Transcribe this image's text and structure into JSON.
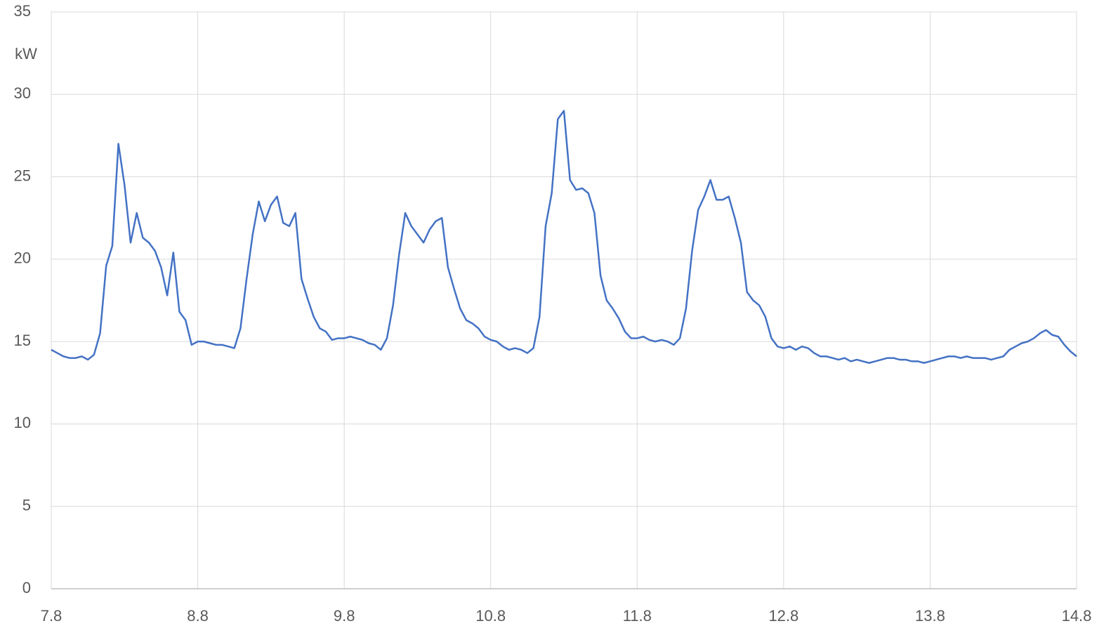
{
  "chart_data": {
    "type": "line",
    "y_label": "kW",
    "categories": [
      "7.8",
      null,
      null,
      null,
      null,
      null,
      null,
      null,
      null,
      null,
      null,
      null,
      null,
      null,
      null,
      null,
      null,
      null,
      null,
      null,
      null,
      null,
      null,
      null,
      "8.8",
      null,
      null,
      null,
      null,
      null,
      null,
      null,
      null,
      null,
      null,
      null,
      null,
      null,
      null,
      null,
      null,
      null,
      null,
      null,
      null,
      null,
      null,
      null,
      "9.8",
      null,
      null,
      null,
      null,
      null,
      null,
      null,
      null,
      null,
      null,
      null,
      null,
      null,
      null,
      null,
      null,
      null,
      null,
      null,
      null,
      null,
      null,
      null,
      "10.8",
      null,
      null,
      null,
      null,
      null,
      null,
      null,
      null,
      null,
      null,
      null,
      null,
      null,
      null,
      null,
      null,
      null,
      null,
      null,
      null,
      null,
      null,
      null,
      "11.8",
      null,
      null,
      null,
      null,
      null,
      null,
      null,
      null,
      null,
      null,
      null,
      null,
      null,
      null,
      null,
      null,
      null,
      null,
      null,
      null,
      null,
      null,
      null,
      "12.8",
      null,
      null,
      null,
      null,
      null,
      null,
      null,
      null,
      null,
      null,
      null,
      null,
      null,
      null,
      null,
      null,
      null,
      null,
      null,
      null,
      null,
      null,
      null,
      "13.8",
      null,
      null,
      null,
      null,
      null,
      null,
      null,
      null,
      null,
      null,
      null,
      null,
      null,
      null,
      null,
      null,
      null,
      null,
      null,
      null,
      null,
      null,
      null,
      "14.8"
    ],
    "values": [
      14.5,
      14.3,
      14.1,
      14.0,
      14.0,
      14.1,
      13.9,
      14.2,
      15.5,
      19.6,
      20.8,
      27.0,
      24.5,
      21.0,
      22.8,
      21.3,
      21.0,
      20.5,
      19.5,
      17.8,
      20.4,
      16.8,
      16.3,
      14.8,
      15.0,
      15.0,
      14.9,
      14.8,
      14.8,
      14.7,
      14.6,
      15.8,
      18.8,
      21.5,
      23.5,
      22.3,
      23.3,
      23.8,
      22.2,
      22.0,
      22.8,
      18.8,
      17.6,
      16.5,
      15.8,
      15.6,
      15.1,
      15.2,
      15.2,
      15.3,
      15.2,
      15.1,
      14.9,
      14.8,
      14.5,
      15.2,
      17.2,
      20.3,
      22.8,
      22.0,
      21.5,
      21.0,
      21.8,
      22.3,
      22.5,
      19.5,
      18.2,
      17.0,
      16.3,
      16.1,
      15.8,
      15.3,
      15.1,
      15.0,
      14.7,
      14.5,
      14.6,
      14.5,
      14.3,
      14.6,
      16.5,
      22.0,
      24.0,
      28.5,
      29.0,
      24.8,
      24.2,
      24.3,
      24.0,
      22.8,
      19.0,
      17.5,
      17.0,
      16.4,
      15.6,
      15.2,
      15.2,
      15.3,
      15.1,
      15.0,
      15.1,
      15.0,
      14.8,
      15.2,
      17.0,
      20.5,
      23.0,
      23.8,
      24.8,
      23.6,
      23.6,
      23.8,
      22.5,
      21.0,
      18.0,
      17.5,
      17.2,
      16.5,
      15.2,
      14.7,
      14.6,
      14.7,
      14.5,
      14.7,
      14.6,
      14.3,
      14.1,
      14.1,
      14.0,
      13.9,
      14.0,
      13.8,
      13.9,
      13.8,
      13.7,
      13.8,
      13.9,
      14.0,
      14.0,
      13.9,
      13.9,
      13.8,
      13.8,
      13.7,
      13.8,
      13.9,
      14.0,
      14.1,
      14.1,
      14.0,
      14.1,
      14.0,
      14.0,
      14.0,
      13.9,
      14.0,
      14.1,
      14.5,
      14.7,
      14.9,
      15.0,
      15.2,
      15.5,
      15.7,
      15.4,
      15.3,
      14.8,
      14.4,
      14.1
    ],
    "color": "#4472c4",
    "ylim": [
      0,
      35
    ],
    "yticks": [
      0,
      5,
      10,
      15,
      20,
      25,
      30,
      35
    ],
    "grid": true
  }
}
